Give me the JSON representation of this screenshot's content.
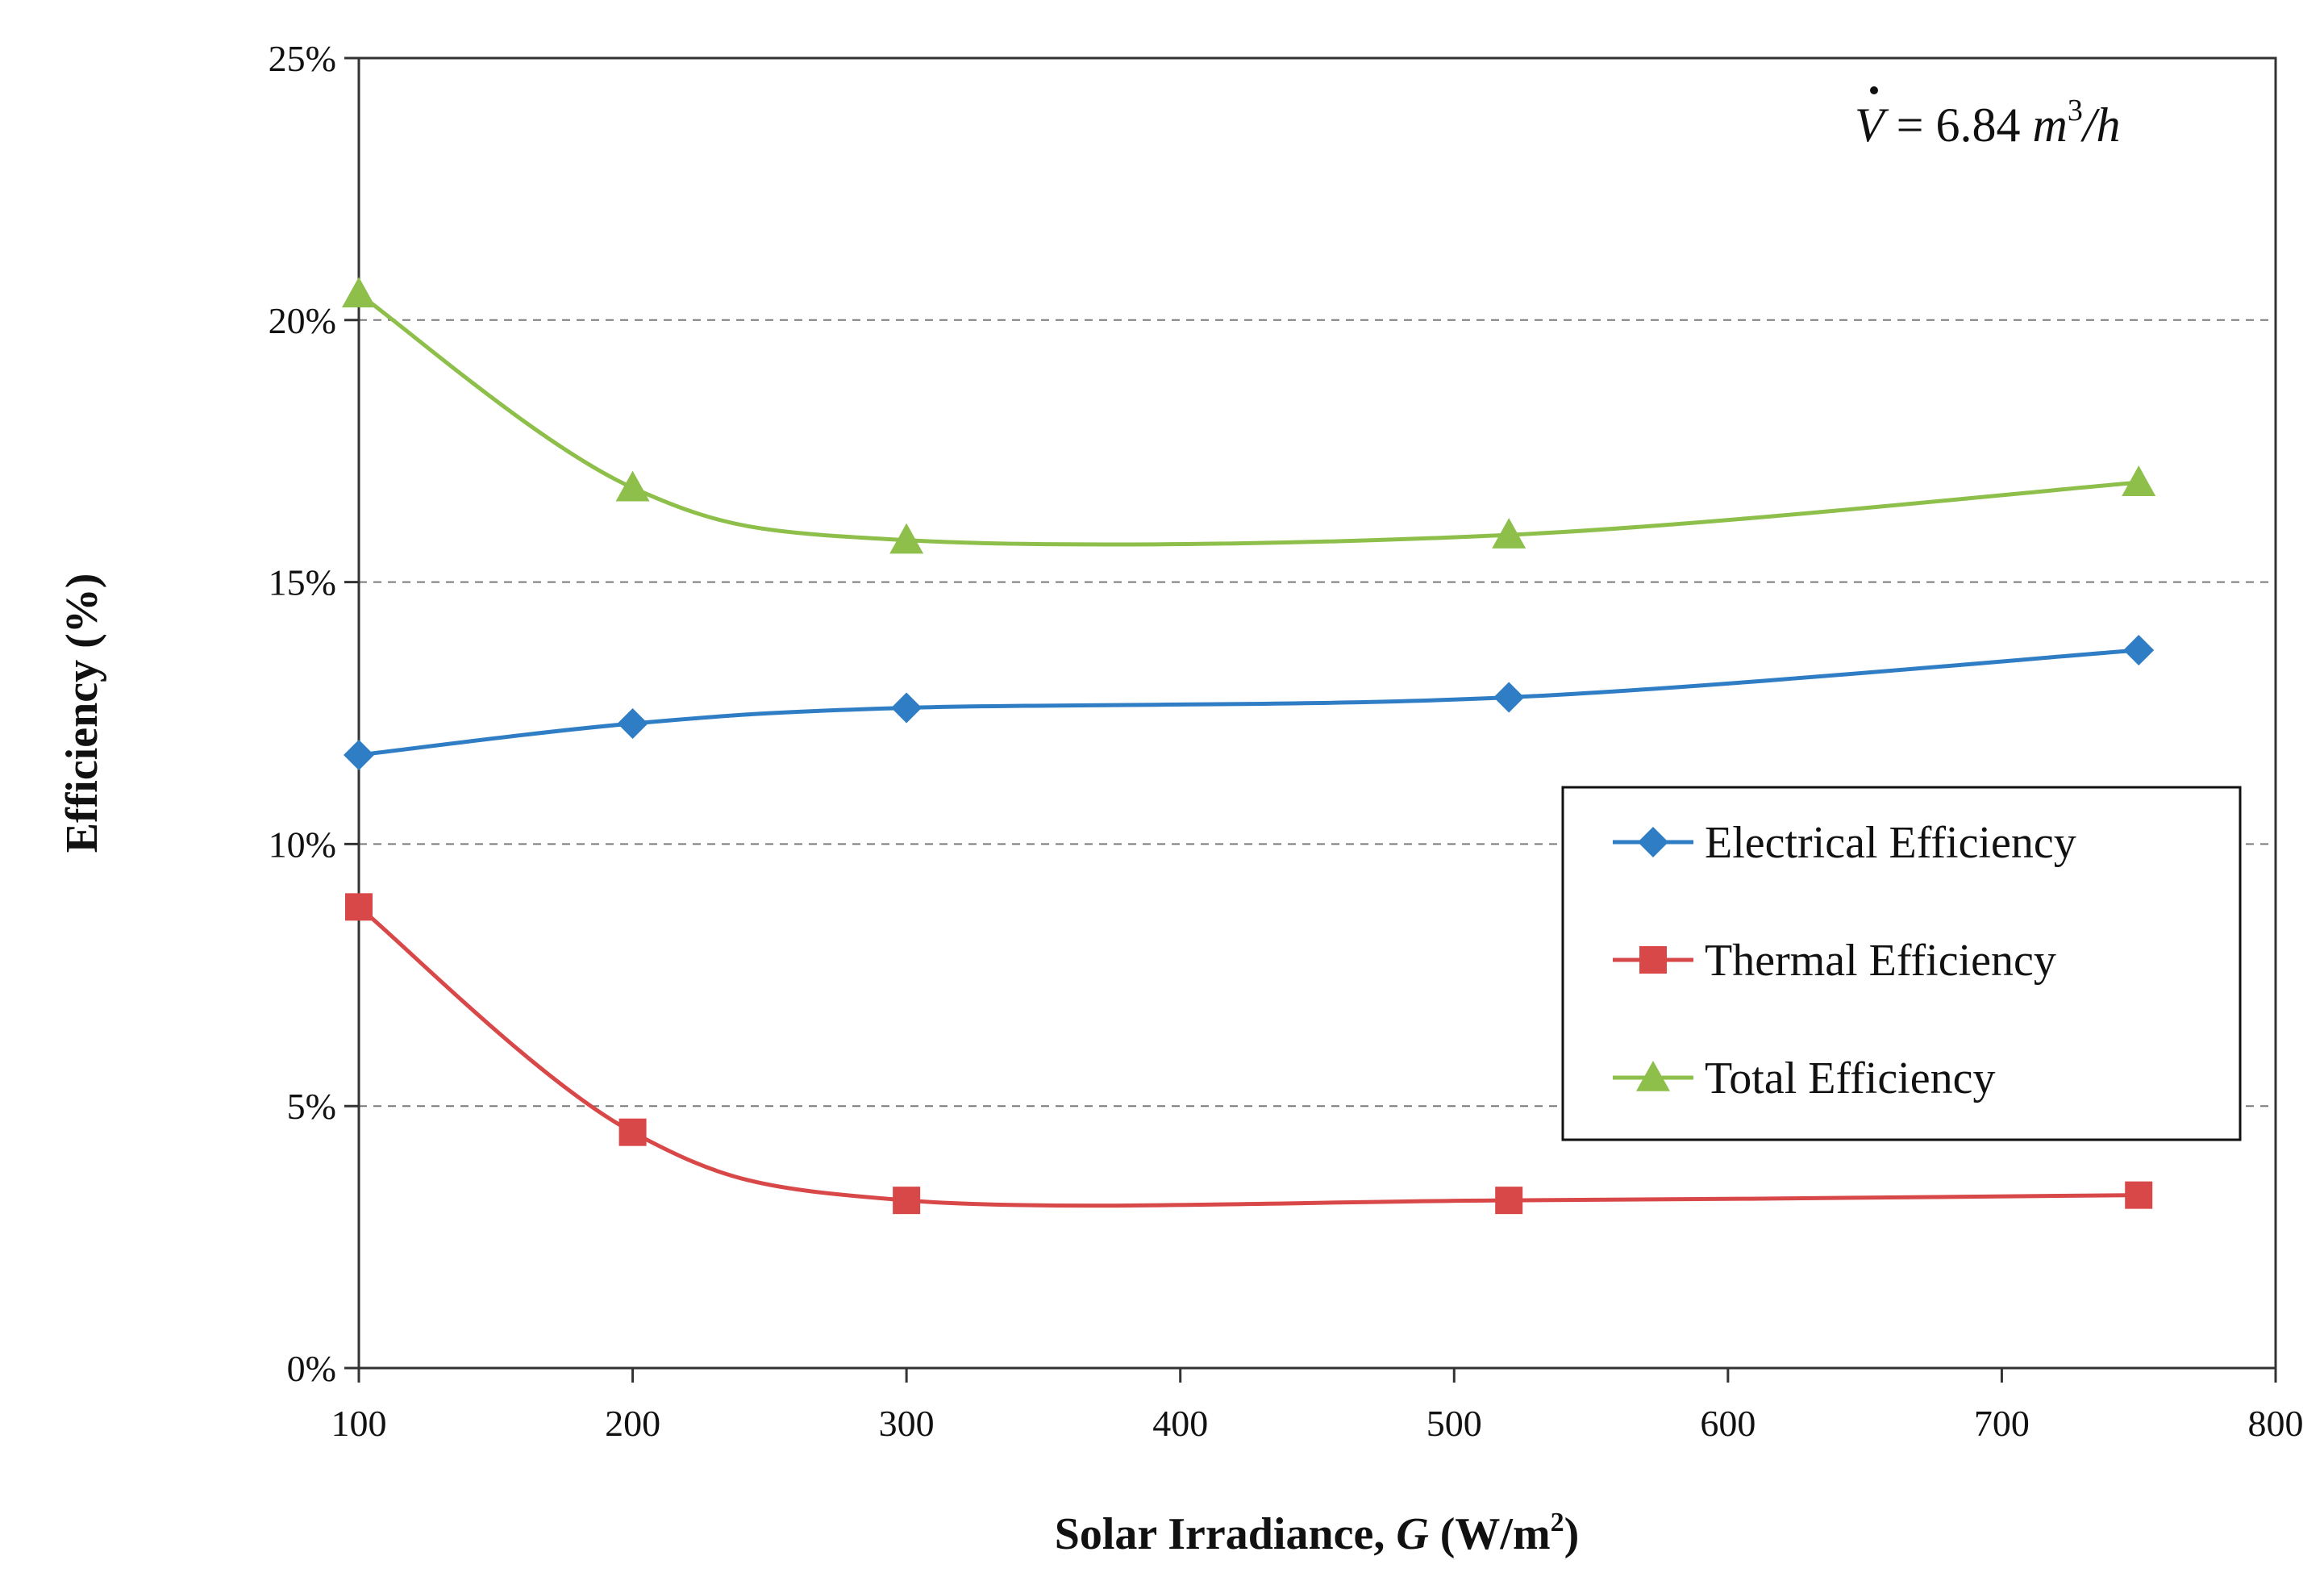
{
  "chart_data": {
    "type": "line",
    "title": "",
    "xlabel": "Solar Irradiance, G (W/m²)",
    "xlabel_parts": {
      "prefix": "Solar Irradiance, ",
      "var": "G",
      "suffix": " (W/m",
      "sup": "2",
      "close": ")"
    },
    "ylabel": "Efficiency (%)",
    "annotation": {
      "v": "V",
      "eq": " = 6.84 ",
      "unit": "m",
      "sup": "3",
      "tail": "/h"
    },
    "xlim": [
      100,
      800
    ],
    "ylim": [
      0,
      25
    ],
    "x_ticks": [
      100,
      200,
      300,
      400,
      500,
      600,
      700,
      800
    ],
    "y_ticks": [
      0,
      5,
      10,
      15,
      20,
      25
    ],
    "y_tick_labels": [
      "0%",
      "5%",
      "10%",
      "15%",
      "20%",
      "25%"
    ],
    "grid": "horizontal-dashed",
    "legend_position": "right",
    "x": [
      100,
      200,
      300,
      520,
      750
    ],
    "series": [
      {
        "name": "Electrical Efficiency",
        "color": "#2f7dc4",
        "marker": "diamond",
        "values": [
          11.7,
          12.3,
          12.6,
          12.8,
          13.7
        ]
      },
      {
        "name": "Thermal Efficiency",
        "color": "#d94848",
        "marker": "square",
        "values": [
          8.8,
          4.5,
          3.2,
          3.2,
          3.3
        ]
      },
      {
        "name": "Total Efficiency",
        "color": "#8dbf4a",
        "marker": "triangle",
        "values": [
          20.5,
          16.8,
          15.8,
          15.9,
          16.9
        ]
      }
    ]
  }
}
